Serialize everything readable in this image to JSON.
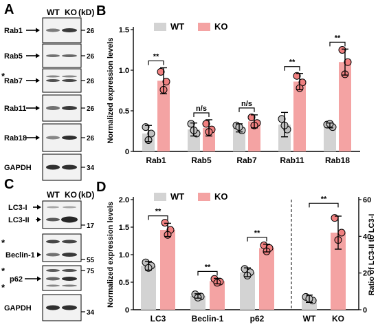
{
  "colors": {
    "wt": "#d3d3d3",
    "ko": "#f4a3a3",
    "wt_dot": "#c0c0c0",
    "ko_dot": "#f08080",
    "blot_bg": "#f2f2f2",
    "band": "#1a1a1a"
  },
  "blots": {
    "panel_a": {
      "letter": "A",
      "lanes": [
        "WT",
        "KO"
      ],
      "unit": "(kD)",
      "rows": [
        {
          "label": "Rab1",
          "kd": "26"
        },
        {
          "label": "Rab5",
          "kd": "26"
        },
        {
          "label": "Rab7",
          "kd": "26",
          "star": "*"
        },
        {
          "label": "Rab11",
          "kd": "26"
        },
        {
          "label": "Rab18",
          "kd": "26"
        },
        {
          "label": "GAPDH",
          "kd": "34"
        }
      ]
    },
    "panel_c": {
      "letter": "C",
      "lanes": [
        "WT",
        "KO"
      ],
      "unit": "(kD)",
      "lc3_i": "LC3-I",
      "lc3_ii": "LC3-II",
      "lc3_kd": "17",
      "beclin": "Beclin-1",
      "beclin_kd": "55",
      "p62": "p62",
      "p62_kd": "75",
      "gapdh": "GAPDH",
      "gapdh_kd": "34",
      "star": "*"
    }
  },
  "chart_data": [
    {
      "panel": "B",
      "type": "bar",
      "legend": [
        "WT",
        "KO"
      ],
      "legend_position": "top-left",
      "ylabel": "Normalized expression levels",
      "ylim": [
        0,
        1.5
      ],
      "yticks": [
        "0",
        "0.5",
        "1.0",
        "1.5"
      ],
      "categories": [
        "Rab1",
        "Rab5",
        "Rab7",
        "Rab11",
        "Rab18"
      ],
      "series": [
        {
          "name": "WT",
          "values": [
            0.22,
            0.27,
            0.29,
            0.33,
            0.32
          ],
          "errors": [
            0.1,
            0.08,
            0.05,
            0.15,
            0.03
          ],
          "points": [
            [
              0.3,
              0.22,
              0.14
            ],
            [
              0.34,
              0.22,
              0.26
            ],
            [
              0.32,
              0.26,
              0.3
            ],
            [
              0.4,
              0.27,
              0.32
            ],
            [
              0.33,
              0.3,
              0.34
            ]
          ]
        },
        {
          "name": "KO",
          "values": [
            0.87,
            0.29,
            0.37,
            0.86,
            1.1
          ],
          "errors": [
            0.16,
            0.1,
            0.08,
            0.1,
            0.16
          ],
          "points": [
            [
              0.98,
              0.86,
              0.76
            ],
            [
              0.34,
              0.27,
              0.24
            ],
            [
              0.42,
              0.35,
              0.32
            ],
            [
              0.93,
              0.85,
              0.78
            ],
            [
              1.25,
              1.1,
              0.95
            ]
          ]
        }
      ],
      "significance": [
        "**",
        "n/s",
        "n/s",
        "**",
        "**"
      ]
    },
    {
      "panel": "D",
      "type": "bar",
      "legend": [
        "WT",
        "KO"
      ],
      "legend_position": "top-left",
      "ylabel": "Normalized expression levels",
      "ylim": [
        0,
        2.0
      ],
      "yticks": [
        "0",
        "0.5",
        "1.0",
        "1.5",
        "2.0"
      ],
      "categories": [
        "LC3",
        "Beclin-1",
        "p62"
      ],
      "series": [
        {
          "name": "WT",
          "values": [
            0.8,
            0.25,
            0.68
          ],
          "errors": [
            0.08,
            0.04,
            0.08
          ],
          "points": [
            [
              0.86,
              0.8,
              0.76
            ],
            [
              0.28,
              0.24,
              0.22
            ],
            [
              0.74,
              0.68,
              0.62
            ]
          ]
        },
        {
          "name": "KO",
          "values": [
            1.45,
            0.52,
            1.12
          ],
          "errors": [
            0.12,
            0.05,
            0.07
          ],
          "points": [
            [
              1.58,
              1.45,
              1.36
            ],
            [
              0.56,
              0.51,
              0.49
            ],
            [
              1.17,
              1.12,
              1.06
            ]
          ]
        }
      ],
      "significance": [
        "**",
        "**",
        "**"
      ],
      "ratio": {
        "categories": [
          "WT",
          "KO"
        ],
        "values": [
          6,
          42
        ],
        "errors": [
          2,
          9
        ],
        "points": [
          [
            7,
            5,
            6
          ],
          [
            50,
            42,
            38
          ]
        ],
        "significance": "**",
        "ylabel": "Ratio of LC3-II to LC3-I",
        "ylim": [
          0,
          60
        ],
        "yticks": [
          "0",
          "20",
          "40",
          "60"
        ]
      }
    }
  ]
}
